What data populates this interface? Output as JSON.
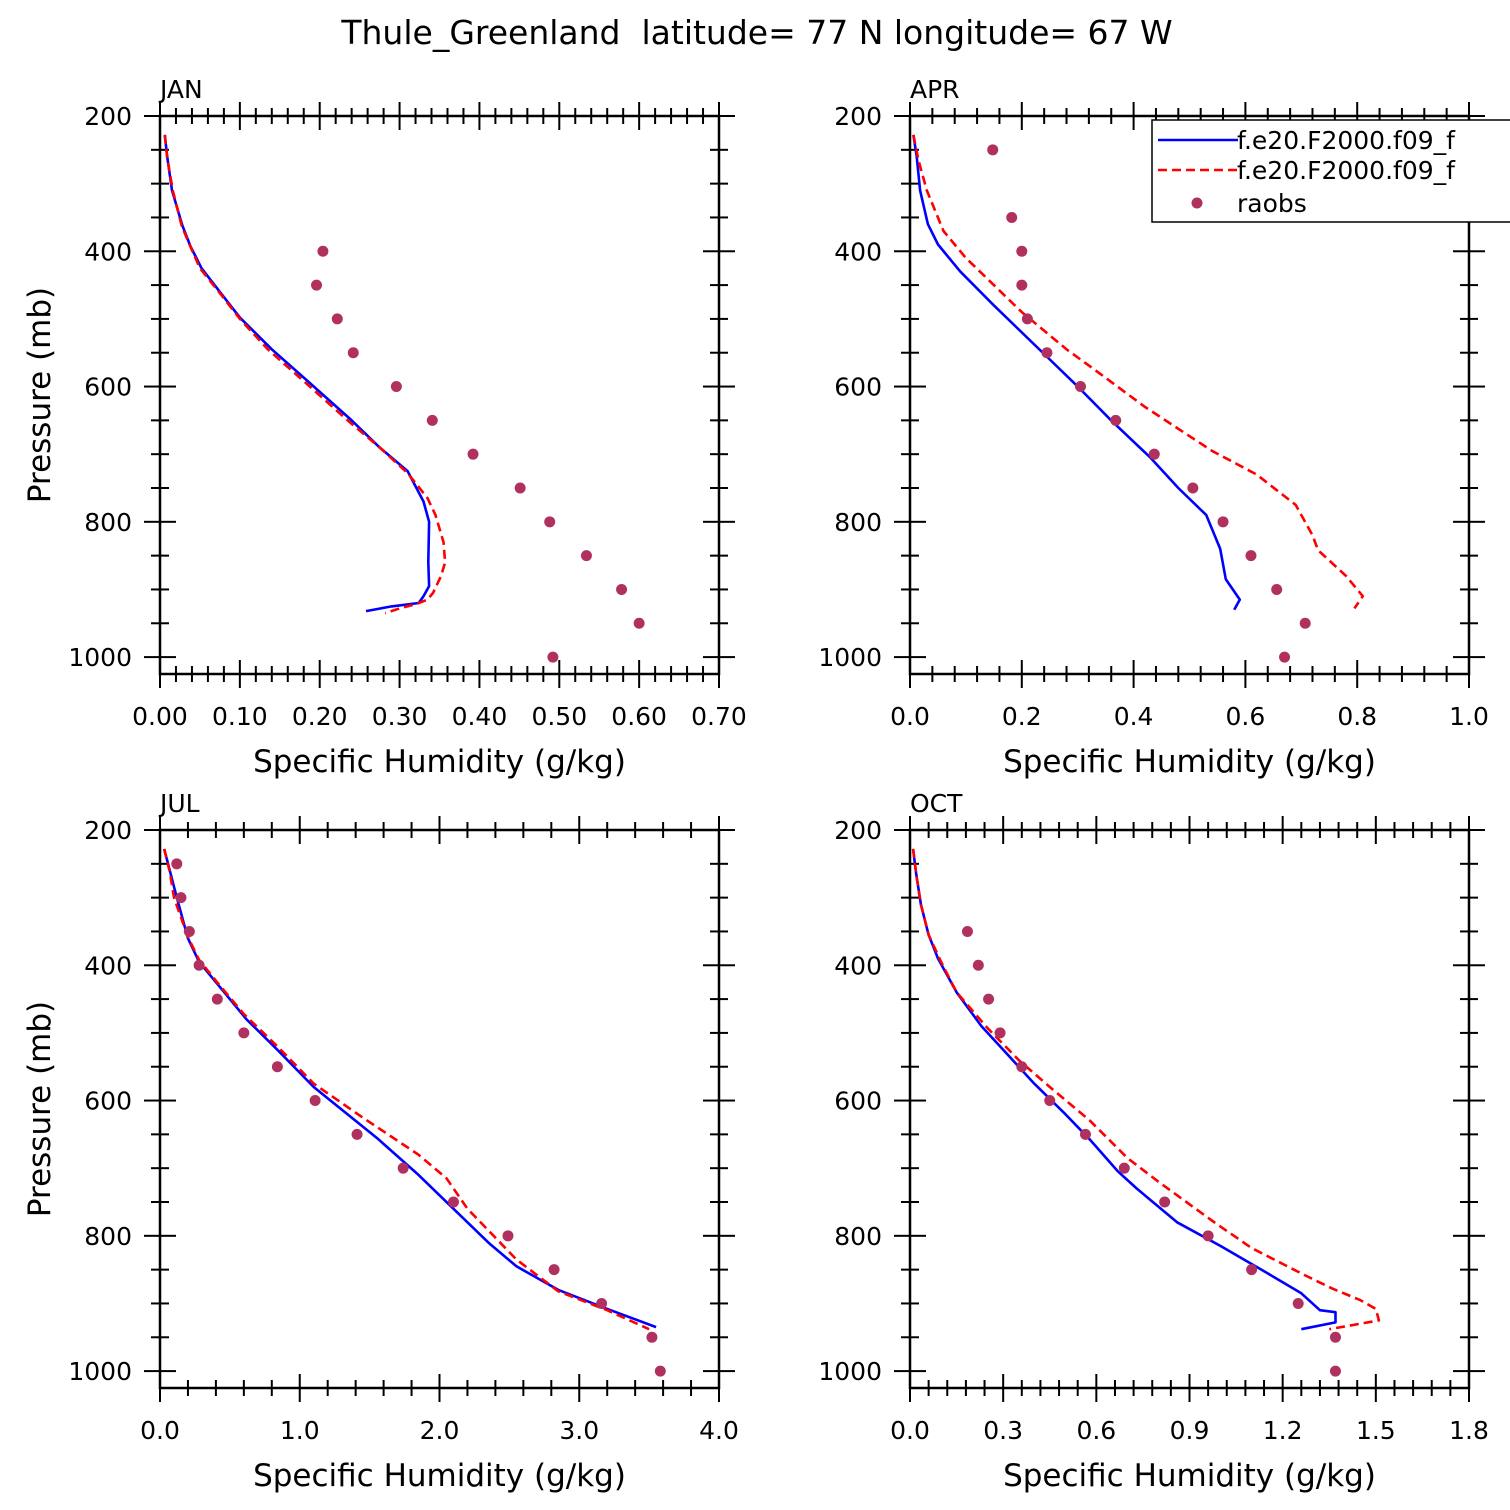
{
  "figure": {
    "title": "Thule_Greenland  latitude= 77 N longitude= 67 W"
  },
  "legend": {
    "entries": [
      {
        "label": "f.e20.F2000.f09_f",
        "style": "solid",
        "color": "#0000ff"
      },
      {
        "label": "f.e20.F2000.f09_f",
        "style": "dashed",
        "color": "#ff0000"
      },
      {
        "label": "raobs",
        "style": "marker",
        "color": "#b03060"
      }
    ]
  },
  "colors": {
    "model_solid": "#0000ff",
    "model_dashed": "#ff0000",
    "raobs": "#b03060"
  },
  "chart_data": [
    {
      "type": "line",
      "panel": "JAN",
      "xlabel": "Specific Humidity (g/kg)",
      "ylabel": "Pressure (mb)",
      "xlim": [
        0,
        0.7
      ],
      "ylim": [
        200,
        1025
      ],
      "y_inverted": true,
      "x_ticks": [
        "0.00",
        "0.10",
        "0.20",
        "0.30",
        "0.40",
        "0.50",
        "0.60",
        "0.70"
      ],
      "x_tick_values": [
        0,
        0.1,
        0.2,
        0.3,
        0.4,
        0.5,
        0.6,
        0.7
      ],
      "y_ticks": [
        "200",
        "400",
        "600",
        "800",
        "1000"
      ],
      "y_tick_values": [
        200,
        400,
        600,
        800,
        1000
      ],
      "series": [
        {
          "style": "solid",
          "points": [
            [
              0.006,
              228
            ],
            [
              0.009,
              260
            ],
            [
              0.015,
              310
            ],
            [
              0.028,
              362
            ],
            [
              0.038,
              392
            ],
            [
              0.052,
              425
            ],
            [
              0.075,
              460
            ],
            [
              0.1,
              498
            ],
            [
              0.14,
              545
            ],
            [
              0.185,
              592
            ],
            [
              0.24,
              650
            ],
            [
              0.275,
              690
            ],
            [
              0.31,
              725
            ],
            [
              0.33,
              770
            ],
            [
              0.337,
              800
            ],
            [
              0.336,
              860
            ],
            [
              0.337,
              895
            ],
            [
              0.33,
              910
            ],
            [
              0.324,
              920
            ],
            [
              0.29,
              925
            ],
            [
              0.258,
              932
            ]
          ]
        },
        {
          "style": "dashed",
          "points": [
            [
              0.006,
              228
            ],
            [
              0.009,
              262
            ],
            [
              0.016,
              310
            ],
            [
              0.027,
              362
            ],
            [
              0.037,
              390
            ],
            [
              0.05,
              425
            ],
            [
              0.075,
              462
            ],
            [
              0.1,
              500
            ],
            [
              0.135,
              545
            ],
            [
              0.18,
              592
            ],
            [
              0.235,
              650
            ],
            [
              0.275,
              690
            ],
            [
              0.31,
              728
            ],
            [
              0.335,
              765
            ],
            [
              0.345,
              790
            ],
            [
              0.355,
              830
            ],
            [
              0.357,
              860
            ],
            [
              0.352,
              880
            ],
            [
              0.342,
              905
            ],
            [
              0.335,
              915
            ],
            [
              0.32,
              922
            ],
            [
              0.3,
              928
            ],
            [
              0.282,
              935
            ]
          ]
        }
      ],
      "raobs": [
        [
          0.204,
          400
        ],
        [
          0.196,
          450
        ],
        [
          0.222,
          500
        ],
        [
          0.242,
          550
        ],
        [
          0.296,
          600
        ],
        [
          0.341,
          650
        ],
        [
          0.392,
          700
        ],
        [
          0.451,
          750
        ],
        [
          0.488,
          800
        ],
        [
          0.534,
          850
        ],
        [
          0.578,
          900
        ],
        [
          0.6,
          950
        ],
        [
          0.492,
          1000
        ]
      ]
    },
    {
      "type": "line",
      "panel": "APR",
      "xlabel": "Specific Humidity (g/kg)",
      "ylabel": "",
      "xlim": [
        0,
        1.0
      ],
      "ylim": [
        200,
        1025
      ],
      "y_inverted": true,
      "x_ticks": [
        "0.0",
        "0.2",
        "0.4",
        "0.6",
        "0.8",
        "1.0"
      ],
      "x_tick_values": [
        0,
        0.2,
        0.4,
        0.6,
        0.8,
        1.0
      ],
      "y_ticks": [
        "200",
        "400",
        "600",
        "800",
        "1000"
      ],
      "y_tick_values": [
        200,
        400,
        600,
        800,
        1000
      ],
      "series": [
        {
          "style": "solid",
          "points": [
            [
              0.006,
              228
            ],
            [
              0.012,
              260
            ],
            [
              0.018,
              310
            ],
            [
              0.032,
              360
            ],
            [
              0.05,
              390
            ],
            [
              0.09,
              430
            ],
            [
              0.15,
              480
            ],
            [
              0.19,
              512
            ],
            [
              0.25,
              560
            ],
            [
              0.3,
              600
            ],
            [
              0.36,
              650
            ],
            [
              0.43,
              705
            ],
            [
              0.48,
              750
            ],
            [
              0.53,
              790
            ],
            [
              0.555,
              840
            ],
            [
              0.565,
              885
            ],
            [
              0.59,
              915
            ],
            [
              0.58,
              930
            ]
          ]
        },
        {
          "style": "dashed",
          "points": [
            [
              0.006,
              228
            ],
            [
              0.015,
              265
            ],
            [
              0.03,
              310
            ],
            [
              0.06,
              370
            ],
            [
              0.1,
              410
            ],
            [
              0.2,
              490
            ],
            [
              0.28,
              545
            ],
            [
              0.33,
              575
            ],
            [
              0.42,
              630
            ],
            [
              0.54,
              695
            ],
            [
              0.62,
              730
            ],
            [
              0.69,
              775
            ],
            [
              0.72,
              820
            ],
            [
              0.73,
              842
            ],
            [
              0.78,
              880
            ],
            [
              0.81,
              910
            ],
            [
              0.795,
              928
            ]
          ]
        }
      ],
      "raobs": [
        [
          0.148,
          250
        ],
        [
          0.182,
          350
        ],
        [
          0.2,
          400
        ],
        [
          0.2,
          450
        ],
        [
          0.21,
          500
        ],
        [
          0.245,
          550
        ],
        [
          0.305,
          600
        ],
        [
          0.368,
          650
        ],
        [
          0.437,
          700
        ],
        [
          0.506,
          750
        ],
        [
          0.56,
          800
        ],
        [
          0.61,
          850
        ],
        [
          0.656,
          900
        ],
        [
          0.707,
          950
        ],
        [
          0.67,
          1000
        ]
      ]
    },
    {
      "type": "line",
      "panel": "JUL",
      "xlabel": "Specific Humidity (g/kg)",
      "ylabel": "Pressure (mb)",
      "xlim": [
        0,
        4.0
      ],
      "ylim": [
        200,
        1025
      ],
      "y_inverted": true,
      "x_ticks": [
        "0.0",
        "1.0",
        "2.0",
        "3.0",
        "4.0"
      ],
      "x_tick_values": [
        0,
        1,
        2,
        3,
        4
      ],
      "y_ticks": [
        "200",
        "400",
        "600",
        "800",
        "1000"
      ],
      "y_tick_values": [
        200,
        400,
        600,
        800,
        1000
      ],
      "series": [
        {
          "style": "solid",
          "points": [
            [
              0.03,
              228
            ],
            [
              0.07,
              260
            ],
            [
              0.12,
              300
            ],
            [
              0.2,
              360
            ],
            [
              0.28,
              395
            ],
            [
              0.42,
              430
            ],
            [
              0.62,
              480
            ],
            [
              0.84,
              525
            ],
            [
              1.1,
              580
            ],
            [
              1.55,
              655
            ],
            [
              1.85,
              710
            ],
            [
              2.1,
              760
            ],
            [
              2.35,
              810
            ],
            [
              2.55,
              845
            ],
            [
              2.85,
              880
            ],
            [
              3.2,
              908
            ],
            [
              3.55,
              935
            ]
          ]
        },
        {
          "style": "dashed",
          "points": [
            [
              0.03,
              228
            ],
            [
              0.07,
              262
            ],
            [
              0.1,
              300
            ],
            [
              0.2,
              358
            ],
            [
              0.28,
              392
            ],
            [
              0.42,
              428
            ],
            [
              0.6,
              472
            ],
            [
              0.84,
              520
            ],
            [
              1.1,
              575
            ],
            [
              1.45,
              625
            ],
            [
              1.85,
              680
            ],
            [
              2.05,
              715
            ],
            [
              2.2,
              760
            ],
            [
              2.35,
              792
            ],
            [
              2.55,
              835
            ],
            [
              2.85,
              882
            ],
            [
              3.2,
              910
            ],
            [
              3.5,
              938
            ]
          ]
        }
      ],
      "raobs": [
        [
          0.12,
          250
        ],
        [
          0.15,
          300
        ],
        [
          0.21,
          350
        ],
        [
          0.28,
          400
        ],
        [
          0.41,
          450
        ],
        [
          0.6,
          500
        ],
        [
          0.84,
          550
        ],
        [
          1.11,
          600
        ],
        [
          1.41,
          650
        ],
        [
          1.74,
          700
        ],
        [
          2.1,
          750
        ],
        [
          2.49,
          800
        ],
        [
          2.82,
          850
        ],
        [
          3.16,
          900
        ],
        [
          3.52,
          950
        ],
        [
          3.58,
          1000
        ]
      ]
    },
    {
      "type": "line",
      "panel": "OCT",
      "xlabel": "Specific Humidity (g/kg)",
      "ylabel": "",
      "xlim": [
        0,
        1.8
      ],
      "ylim": [
        200,
        1025
      ],
      "y_inverted": true,
      "x_ticks": [
        "0.0",
        "0.3",
        "0.6",
        "0.9",
        "1.2",
        "1.5",
        "1.8"
      ],
      "x_tick_values": [
        0,
        0.3,
        0.6,
        0.9,
        1.2,
        1.5,
        1.8
      ],
      "y_ticks": [
        "200",
        "400",
        "600",
        "800",
        "1000"
      ],
      "y_tick_values": [
        200,
        400,
        600,
        800,
        1000
      ],
      "series": [
        {
          "style": "solid",
          "points": [
            [
              0.01,
              228
            ],
            [
              0.02,
              265
            ],
            [
              0.035,
              310
            ],
            [
              0.06,
              355
            ],
            [
              0.09,
              390
            ],
            [
              0.15,
              440
            ],
            [
              0.23,
              490
            ],
            [
              0.3,
              525
            ],
            [
              0.4,
              575
            ],
            [
              0.5,
              620
            ],
            [
              0.58,
              658
            ],
            [
              0.67,
              705
            ],
            [
              0.73,
              730
            ],
            [
              0.86,
              780
            ],
            [
              1.0,
              815
            ],
            [
              1.15,
              855
            ],
            [
              1.26,
              885
            ],
            [
              1.32,
              910
            ],
            [
              1.37,
              913
            ],
            [
              1.37,
              928
            ],
            [
              1.26,
              938
            ]
          ]
        },
        {
          "style": "dashed",
          "points": [
            [
              0.01,
              228
            ],
            [
              0.02,
              265
            ],
            [
              0.035,
              310
            ],
            [
              0.06,
              355
            ],
            [
              0.1,
              395
            ],
            [
              0.15,
              440
            ],
            [
              0.25,
              493
            ],
            [
              0.35,
              540
            ],
            [
              0.45,
              580
            ],
            [
              0.58,
              630
            ],
            [
              0.7,
              685
            ],
            [
              0.8,
              720
            ],
            [
              0.98,
              780
            ],
            [
              1.1,
              818
            ],
            [
              1.27,
              858
            ],
            [
              1.36,
              878
            ],
            [
              1.45,
              895
            ],
            [
              1.5,
              908
            ],
            [
              1.51,
              925
            ],
            [
              1.35,
              938
            ]
          ]
        }
      ],
      "raobs": [
        [
          0.185,
          350
        ],
        [
          0.22,
          400
        ],
        [
          0.253,
          450
        ],
        [
          0.29,
          500
        ],
        [
          0.36,
          550
        ],
        [
          0.45,
          600
        ],
        [
          0.565,
          650
        ],
        [
          0.69,
          700
        ],
        [
          0.82,
          750
        ],
        [
          0.96,
          800
        ],
        [
          1.1,
          850
        ],
        [
          1.25,
          900
        ],
        [
          1.37,
          950
        ],
        [
          1.37,
          1000
        ]
      ]
    }
  ]
}
